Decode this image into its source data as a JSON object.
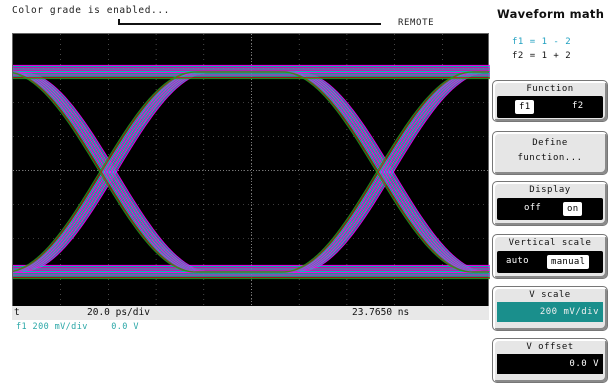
{
  "status": {
    "message": "Color grade is enabled...",
    "remote_label": "REMOTE"
  },
  "scope": {
    "footer": {
      "timebase_marker": "t",
      "timebase": "20.0 ps/div",
      "position": "23.7650 ns"
    },
    "channel": {
      "label": "f1 200 mV/div",
      "offset": "0.0 V"
    },
    "trace_colors": [
      "#ff00ff",
      "#00c8c8",
      "#c01818",
      "#20a020"
    ]
  },
  "panel": {
    "title": "Waveform math",
    "formula1": "f1 = 1 - 2",
    "formula2": "f2 = 1 + 2",
    "function": {
      "label": "Function",
      "options": [
        "f1",
        "f2"
      ],
      "selected": "f1"
    },
    "define": {
      "line1": "Define",
      "line2": "function..."
    },
    "display": {
      "label": "Display",
      "options": [
        "off",
        "on"
      ],
      "selected": "on"
    },
    "vertical_scale": {
      "label": "Vertical scale",
      "options": [
        "auto",
        "manual"
      ],
      "selected": "manual"
    },
    "v_scale": {
      "label": "V scale",
      "value": "200 mV/div"
    },
    "v_offset": {
      "label": "V offset",
      "value": "0.0 V"
    }
  }
}
